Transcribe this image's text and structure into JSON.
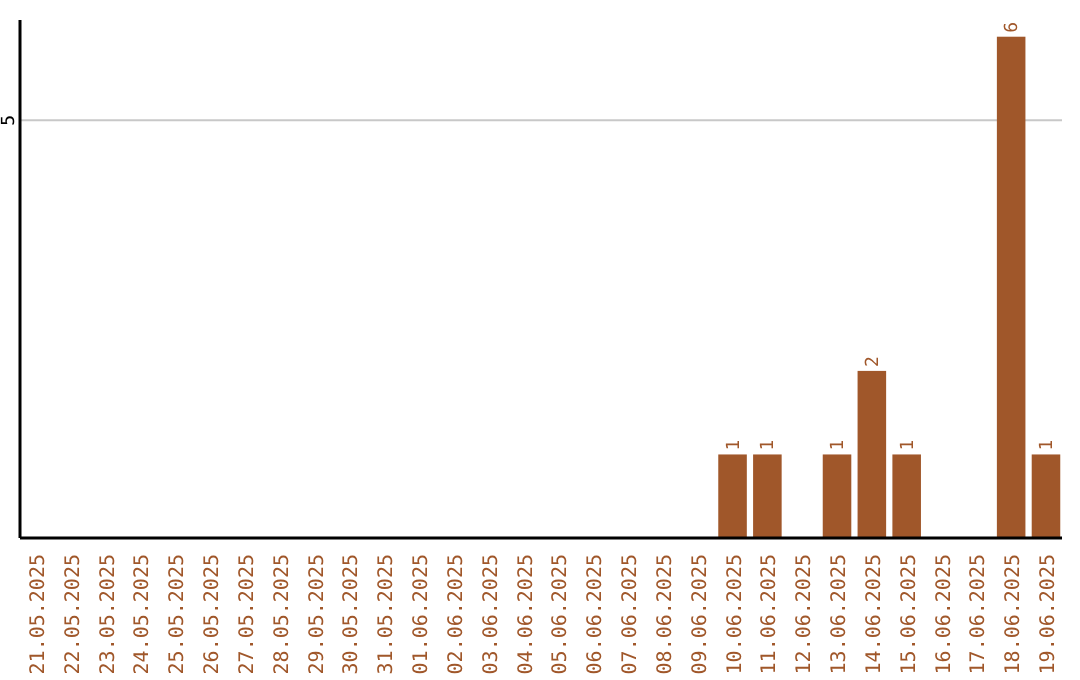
{
  "chart_data": {
    "type": "bar",
    "categories": [
      "21.05.2025",
      "22.05.2025",
      "23.05.2025",
      "24.05.2025",
      "25.05.2025",
      "26.05.2025",
      "27.05.2025",
      "28.05.2025",
      "29.05.2025",
      "30.05.2025",
      "31.05.2025",
      "01.06.2025",
      "02.06.2025",
      "03.06.2025",
      "04.06.2025",
      "05.06.2025",
      "06.06.2025",
      "07.06.2025",
      "08.06.2025",
      "09.06.2025",
      "10.06.2025",
      "11.06.2025",
      "12.06.2025",
      "13.06.2025",
      "14.06.2025",
      "15.06.2025",
      "16.06.2025",
      "17.06.2025",
      "18.06.2025",
      "19.06.2025"
    ],
    "values": [
      null,
      null,
      null,
      null,
      null,
      null,
      null,
      null,
      null,
      null,
      null,
      null,
      null,
      null,
      null,
      null,
      null,
      null,
      null,
      null,
      1,
      1,
      null,
      1,
      2,
      1,
      null,
      null,
      6,
      1
    ],
    "data_labels": true,
    "color": "#a0572a",
    "ylim": [
      0,
      6.2
    ],
    "yticks": [
      5
    ],
    "grid": "y"
  }
}
